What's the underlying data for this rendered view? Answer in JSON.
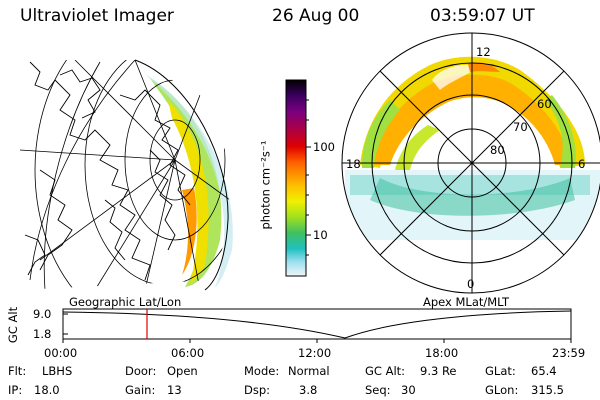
{
  "header": {
    "instrument": "Ultraviolet Imager",
    "date": "26 Aug 00",
    "time": "03:59:07 UT"
  },
  "colorbar": {
    "unit_label": "photon cm⁻²s⁻¹",
    "ticks": [
      "100",
      "10"
    ],
    "scale": "log",
    "colors": [
      "#000000",
      "#3a0060",
      "#7a0080",
      "#b00040",
      "#e00000",
      "#ff6000",
      "#ff9000",
      "#ffc000",
      "#f0f000",
      "#a0e020",
      "#40c060",
      "#20c0c0",
      "#a0e0f0",
      "#e8f4f8"
    ]
  },
  "geo_panel": {
    "title": "Geographic Lat/Lon"
  },
  "polar_panel": {
    "title": "Apex MLat/MLT",
    "mlt_labels": {
      "top": "12",
      "bottom": "0",
      "left": "18",
      "right": "6"
    },
    "lat_labels": [
      "60",
      "70",
      "80"
    ]
  },
  "timeline": {
    "axis_label": "GC Alt",
    "y_ticks": [
      "9.0",
      "1.8"
    ],
    "x_ticks": [
      "00:00",
      "06:00",
      "12:00",
      "18:00",
      "23:59"
    ],
    "marker_time": "03:59:07",
    "marker_color": "#e00000"
  },
  "info": {
    "flt_label": "Flt:",
    "flt_value": "LBHS",
    "door_label": "Door:",
    "door_value": "Open",
    "mode_label": "Mode:",
    "mode_value": "Normal",
    "gcalt_label": "GC Alt:",
    "gcalt_value": "9.3 Re",
    "glat_label": "GLat:",
    "glat_value": "65.4",
    "ip_label": "IP:",
    "ip_value": "18.0",
    "gain_label": "Gain:",
    "gain_value": "13",
    "dsp_label": "Dsp:",
    "dsp_value": "3.8",
    "seq_label": "Seq:",
    "seq_value": "30",
    "glon_label": "GLon:",
    "glon_value": "315.5"
  }
}
